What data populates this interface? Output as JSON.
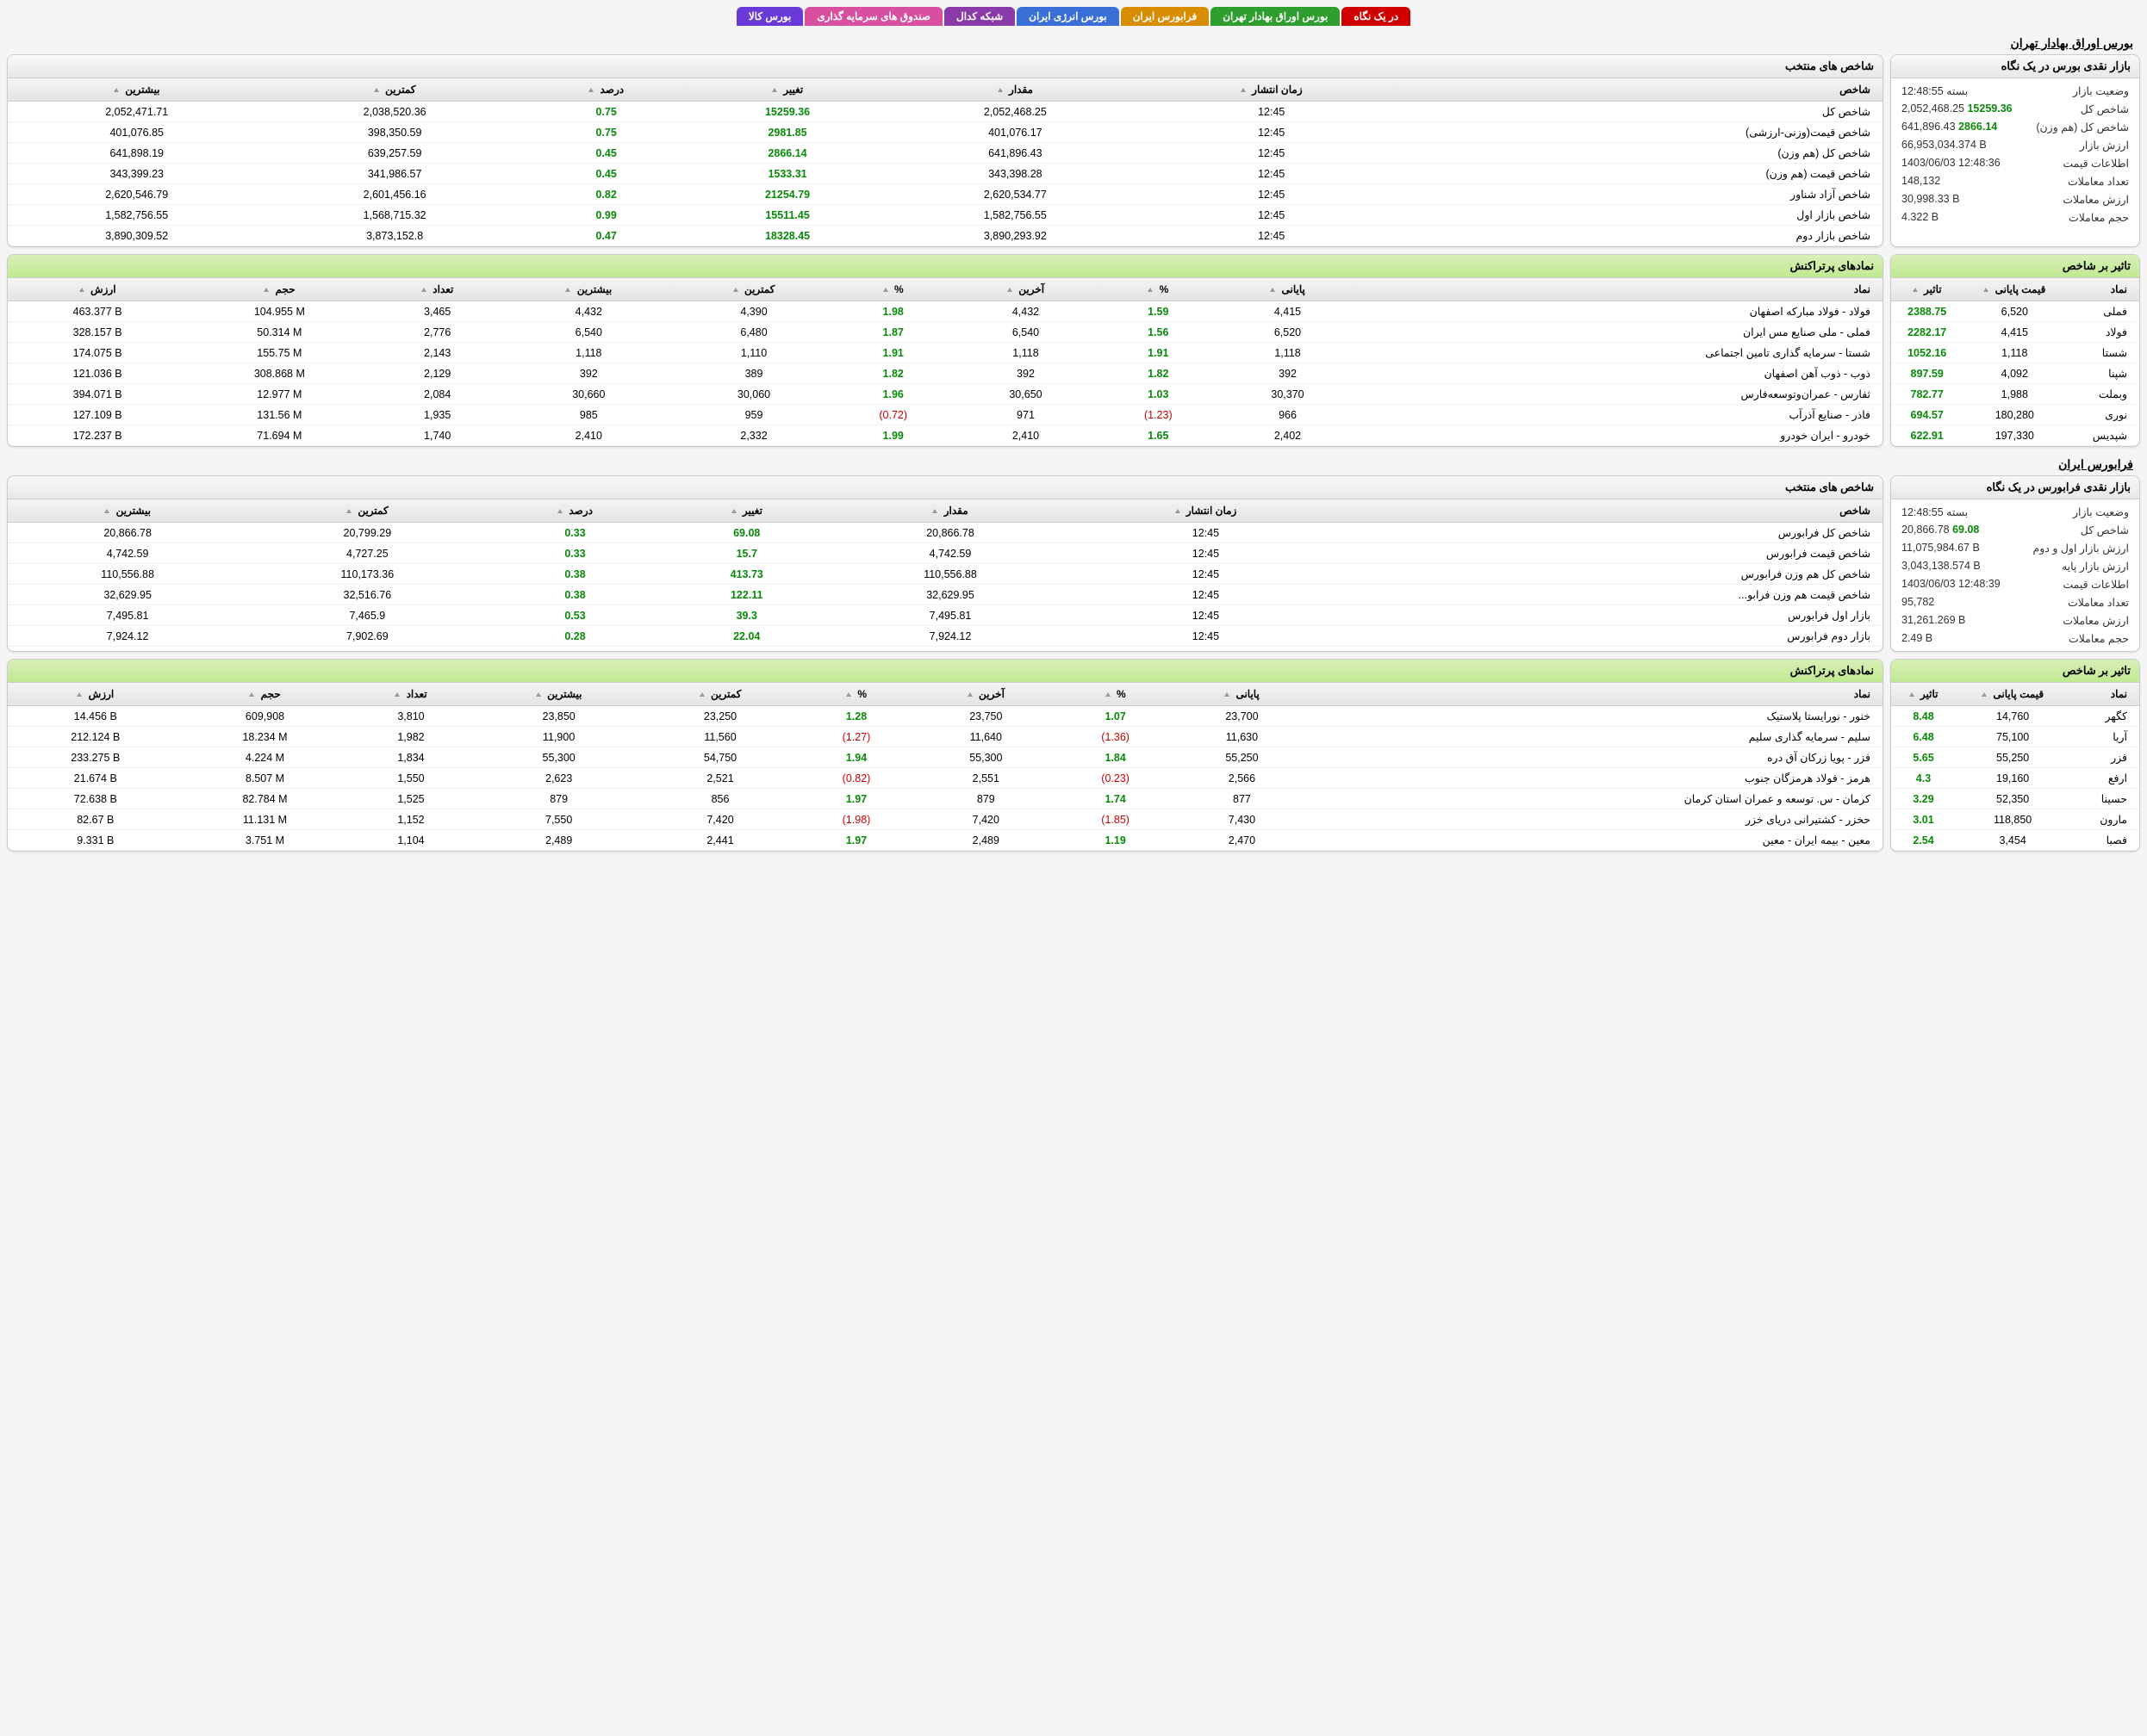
{
  "tabs": [
    {
      "label": "در یک نگاه",
      "bg": "#d00000"
    },
    {
      "label": "بورس اوراق بهادار تهران",
      "bg": "#2e9e2e"
    },
    {
      "label": "فرابورس ایران",
      "bg": "#d88c00"
    },
    {
      "label": "بورس انرژی ایران",
      "bg": "#3a6fd8"
    },
    {
      "label": "شبکه کدال",
      "bg": "#8a3aa8"
    },
    {
      "label": "صندوق های سرمایه گذاری",
      "bg": "#d84fa0"
    },
    {
      "label": "بورس کالا",
      "bg": "#6a3ad8"
    }
  ],
  "tse": {
    "title": "بورس اوراق بهادار تهران",
    "glance_header": "بازار نقدی بورس در یک نگاه",
    "glance": [
      {
        "k": "وضعیت بازار",
        "v": "بسته 12:48:55"
      },
      {
        "k": "شاخص کل",
        "v": "2,052,468.25",
        "chg": "15259.36"
      },
      {
        "k": "شاخص كل (هم وزن)",
        "v": "641,896.43",
        "chg": "2866.14"
      },
      {
        "k": "ارزش بازار",
        "v": "66,953,034.374 B"
      },
      {
        "k": "اطلاعات قیمت",
        "v": "1403/06/03 12:48:36"
      },
      {
        "k": "تعداد معاملات",
        "v": "148,132"
      },
      {
        "k": "ارزش معاملات",
        "v": "30,998.33 B"
      },
      {
        "k": "حجم معاملات",
        "v": "4.322 B"
      }
    ],
    "indices_header": "شاخص های منتخب",
    "indices_cols": [
      "شاخص",
      "زمان انتشار",
      "مقدار",
      "تغییر",
      "درصد",
      "کمترین",
      "بیشترین"
    ],
    "indices": [
      [
        "شاخص کل",
        "12:45",
        "2,052,468.25",
        "15259.36",
        "0.75",
        "2,038,520.36",
        "2,052,471.71"
      ],
      [
        "شاخص قیمت(وزنی-ارزشی)",
        "12:45",
        "401,076.17",
        "2981.85",
        "0.75",
        "398,350.59",
        "401,076.85"
      ],
      [
        "شاخص كل (هم وزن)",
        "12:45",
        "641,896.43",
        "2866.14",
        "0.45",
        "639,257.59",
        "641,898.19"
      ],
      [
        "شاخص قیمت (هم وزن)",
        "12:45",
        "343,398.28",
        "1533.31",
        "0.45",
        "341,986.57",
        "343,399.23"
      ],
      [
        "شاخص آزاد شناور",
        "12:45",
        "2,620,534.77",
        "21254.79",
        "0.82",
        "2,601,456.16",
        "2,620,546.79"
      ],
      [
        "شاخص بازار اول",
        "12:45",
        "1,582,756.55",
        "15511.45",
        "0.99",
        "1,568,715.32",
        "1,582,756.55"
      ],
      [
        "شاخص بازار دوم",
        "12:45",
        "3,890,293.92",
        "18328.45",
        "0.47",
        "3,873,152.8",
        "3,890,309.52"
      ]
    ],
    "impact_header": "تاثیر بر شاخص",
    "impact_cols": [
      "نماد",
      "قیمت پایانی",
      "تاثیر"
    ],
    "impact": [
      [
        "فملی",
        "6,520",
        "2388.75"
      ],
      [
        "فولاد",
        "4,415",
        "2282.17"
      ],
      [
        "شستا",
        "1,118",
        "1052.16"
      ],
      [
        "شپنا",
        "4,092",
        "897.59"
      ],
      [
        "وبملت",
        "1,988",
        "782.77"
      ],
      [
        "نوری",
        "180,280",
        "694.57"
      ],
      [
        "شپدیس",
        "197,330",
        "622.91"
      ]
    ],
    "top_header": "نمادهای پرتراکنش",
    "top_cols": [
      "نماد",
      "پایانی",
      "%",
      "آخرین",
      "%",
      "کمترین",
      "بیشترین",
      "تعداد",
      "حجم",
      "ارزش"
    ],
    "top": [
      [
        "فولاد - فولاد مباركه اصفهان",
        "4,415",
        "1.59",
        "4,432",
        "1.98",
        "4,390",
        "4,432",
        "3,465",
        "104.955 M",
        "463.377 B"
      ],
      [
        "فملی - ملی صنایع مس ایران",
        "6,520",
        "1.56",
        "6,540",
        "1.87",
        "6,480",
        "6,540",
        "2,776",
        "50.314 M",
        "328.157 B"
      ],
      [
        "شستا - سرمایه گذاری تامین اجتماعی",
        "1,118",
        "1.91",
        "1,118",
        "1.91",
        "1,110",
        "1,118",
        "2,143",
        "155.75 M",
        "174.075 B"
      ],
      [
        "ذوب - ذوب آهن اصفهان",
        "392",
        "1.82",
        "392",
        "1.82",
        "389",
        "392",
        "2,129",
        "308.868 M",
        "121.036 B"
      ],
      [
        "ثفارس - عمران‌وتوسعه‌فارس",
        "30,370",
        "1.03",
        "30,650",
        "1.96",
        "30,060",
        "30,660",
        "2,084",
        "12.977 M",
        "394.071 B"
      ],
      [
        "فاذر - صنایع آذرآب",
        "966",
        "(1.23)",
        "971",
        "(0.72)",
        "959",
        "985",
        "1,935",
        "131.56 M",
        "127.109 B"
      ],
      [
        "خودرو - ایران خودرو",
        "2,402",
        "1.65",
        "2,410",
        "1.99",
        "2,332",
        "2,410",
        "1,740",
        "71.694 M",
        "172.237 B"
      ]
    ]
  },
  "ifb": {
    "title": "فرابورس ایران",
    "glance_header": "بازار نقدی فرابورس در یک نگاه",
    "glance": [
      {
        "k": "وضعیت بازار",
        "v": "بسته 12:48:55"
      },
      {
        "k": "شاخص کل",
        "v": "20,866.78",
        "chg": "69.08"
      },
      {
        "k": "ارزش بازار اول و دوم",
        "v": "11,075,984.67 B"
      },
      {
        "k": "ارزش بازار پایه",
        "v": "3,043,138.574 B"
      },
      {
        "k": "اطلاعات قیمت",
        "v": "1403/06/03 12:48:39"
      },
      {
        "k": "تعداد معاملات",
        "v": "95,782"
      },
      {
        "k": "ارزش معاملات",
        "v": "31,261.269 B"
      },
      {
        "k": "حجم معاملات",
        "v": "2.49 B"
      }
    ],
    "indices_header": "شاخص های منتخب",
    "indices": [
      [
        "شاخص کل فرابورس",
        "12:45",
        "20,866.78",
        "69.08",
        "0.33",
        "20,799.29",
        "20,866.78"
      ],
      [
        "شاخص قیمت فرابورس",
        "12:45",
        "4,742.59",
        "15.7",
        "0.33",
        "4,727.25",
        "4,742.59"
      ],
      [
        "شاخص کل هم وزن فرابورس",
        "12:45",
        "110,556.88",
        "413.73",
        "0.38",
        "110,173.36",
        "110,556.88"
      ],
      [
        "شاخص قیمت هم وزن فرابو...",
        "12:45",
        "32,629.95",
        "122.11",
        "0.38",
        "32,516.76",
        "32,629.95"
      ],
      [
        "بازار اول فرابورس",
        "12:45",
        "7,495.81",
        "39.3",
        "0.53",
        "7,465.9",
        "7,495.81"
      ],
      [
        "بازار دوم فرابورس",
        "12:45",
        "7,924.12",
        "22.04",
        "0.28",
        "7,902.69",
        "7,924.12"
      ]
    ],
    "impact_header": "تاثیر بر شاخص",
    "impact": [
      [
        "کگهر",
        "14,760",
        "8.48"
      ],
      [
        "آریا",
        "75,100",
        "6.48"
      ],
      [
        "فزر",
        "55,250",
        "5.65"
      ],
      [
        "ارفع",
        "19,160",
        "4.3"
      ],
      [
        "حسینا",
        "52,350",
        "3.29"
      ],
      [
        "مارون",
        "118,850",
        "3.01"
      ],
      [
        "فصبا",
        "3,454",
        "2.54"
      ]
    ],
    "top_header": "نمادهای پرتراکنش",
    "top": [
      [
        "خنور - نورایستا پلاستیک",
        "23,700",
        "1.07",
        "23,750",
        "1.28",
        "23,250",
        "23,850",
        "3,810",
        "609,908",
        "14.456 B"
      ],
      [
        "سلیم - سرمایه گذاری سلیم",
        "11,630",
        "(1.36)",
        "11,640",
        "(1.27)",
        "11,560",
        "11,900",
        "1,982",
        "18.234 M",
        "212.124 B"
      ],
      [
        "فزر - پویا زرکان آق دره",
        "55,250",
        "1.84",
        "55,300",
        "1.94",
        "54,750",
        "55,300",
        "1,834",
        "4.224 M",
        "233.275 B"
      ],
      [
        "هرمز - فولاد هرمزگان جنوب",
        "2,566",
        "(0.23)",
        "2,551",
        "(0.82)",
        "2,521",
        "2,623",
        "1,550",
        "8.507 M",
        "21.674 B"
      ],
      [
        "کرمان - س. توسعه و عمران استان کرمان",
        "877",
        "1.74",
        "879",
        "1.97",
        "856",
        "879",
        "1,525",
        "82.784 M",
        "72.638 B"
      ],
      [
        "حخزر - کشتیرانی دریای خزر",
        "7,430",
        "(1.85)",
        "7,420",
        "(1.98)",
        "7,420",
        "7,550",
        "1,152",
        "11.131 M",
        "82.67 B"
      ],
      [
        "معین - بیمه ایران - معین",
        "2,470",
        "1.19",
        "2,489",
        "1.97",
        "2,441",
        "2,489",
        "1,104",
        "3.751 M",
        "9.331 B"
      ]
    ]
  }
}
